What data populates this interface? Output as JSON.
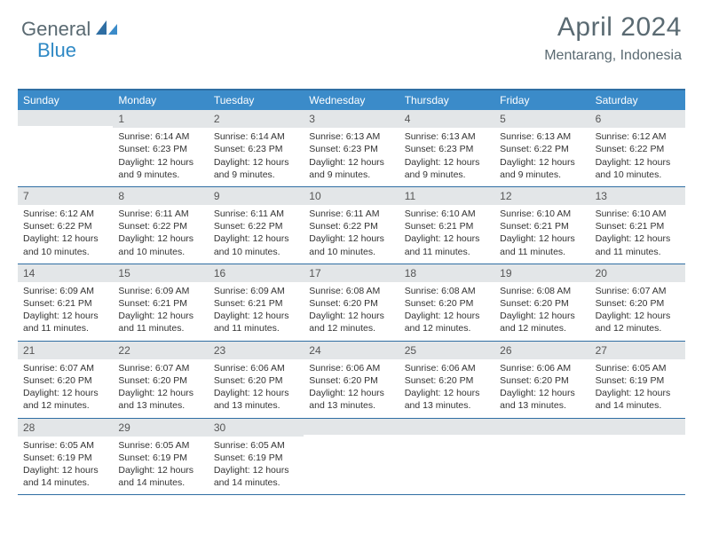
{
  "brand": {
    "part1": "General",
    "part2": "Blue"
  },
  "title": "April 2024",
  "location": "Mentarang, Indonesia",
  "colors": {
    "header_bg": "#3b8bc9",
    "border": "#2f6ea3",
    "daynum_bg": "#e3e6e8",
    "text": "#333333",
    "brand_gray": "#5a6a72",
    "brand_blue": "#2f89c5"
  },
  "dow": [
    "Sunday",
    "Monday",
    "Tuesday",
    "Wednesday",
    "Thursday",
    "Friday",
    "Saturday"
  ],
  "weeks": [
    [
      {
        "n": "",
        "sr": "",
        "ss": "",
        "dl": ""
      },
      {
        "n": "1",
        "sr": "6:14 AM",
        "ss": "6:23 PM",
        "dl": "12 hours and 9 minutes."
      },
      {
        "n": "2",
        "sr": "6:14 AM",
        "ss": "6:23 PM",
        "dl": "12 hours and 9 minutes."
      },
      {
        "n": "3",
        "sr": "6:13 AM",
        "ss": "6:23 PM",
        "dl": "12 hours and 9 minutes."
      },
      {
        "n": "4",
        "sr": "6:13 AM",
        "ss": "6:23 PM",
        "dl": "12 hours and 9 minutes."
      },
      {
        "n": "5",
        "sr": "6:13 AM",
        "ss": "6:22 PM",
        "dl": "12 hours and 9 minutes."
      },
      {
        "n": "6",
        "sr": "6:12 AM",
        "ss": "6:22 PM",
        "dl": "12 hours and 10 minutes."
      }
    ],
    [
      {
        "n": "7",
        "sr": "6:12 AM",
        "ss": "6:22 PM",
        "dl": "12 hours and 10 minutes."
      },
      {
        "n": "8",
        "sr": "6:11 AM",
        "ss": "6:22 PM",
        "dl": "12 hours and 10 minutes."
      },
      {
        "n": "9",
        "sr": "6:11 AM",
        "ss": "6:22 PM",
        "dl": "12 hours and 10 minutes."
      },
      {
        "n": "10",
        "sr": "6:11 AM",
        "ss": "6:22 PM",
        "dl": "12 hours and 10 minutes."
      },
      {
        "n": "11",
        "sr": "6:10 AM",
        "ss": "6:21 PM",
        "dl": "12 hours and 11 minutes."
      },
      {
        "n": "12",
        "sr": "6:10 AM",
        "ss": "6:21 PM",
        "dl": "12 hours and 11 minutes."
      },
      {
        "n": "13",
        "sr": "6:10 AM",
        "ss": "6:21 PM",
        "dl": "12 hours and 11 minutes."
      }
    ],
    [
      {
        "n": "14",
        "sr": "6:09 AM",
        "ss": "6:21 PM",
        "dl": "12 hours and 11 minutes."
      },
      {
        "n": "15",
        "sr": "6:09 AM",
        "ss": "6:21 PM",
        "dl": "12 hours and 11 minutes."
      },
      {
        "n": "16",
        "sr": "6:09 AM",
        "ss": "6:21 PM",
        "dl": "12 hours and 11 minutes."
      },
      {
        "n": "17",
        "sr": "6:08 AM",
        "ss": "6:20 PM",
        "dl": "12 hours and 12 minutes."
      },
      {
        "n": "18",
        "sr": "6:08 AM",
        "ss": "6:20 PM",
        "dl": "12 hours and 12 minutes."
      },
      {
        "n": "19",
        "sr": "6:08 AM",
        "ss": "6:20 PM",
        "dl": "12 hours and 12 minutes."
      },
      {
        "n": "20",
        "sr": "6:07 AM",
        "ss": "6:20 PM",
        "dl": "12 hours and 12 minutes."
      }
    ],
    [
      {
        "n": "21",
        "sr": "6:07 AM",
        "ss": "6:20 PM",
        "dl": "12 hours and 12 minutes."
      },
      {
        "n": "22",
        "sr": "6:07 AM",
        "ss": "6:20 PM",
        "dl": "12 hours and 13 minutes."
      },
      {
        "n": "23",
        "sr": "6:06 AM",
        "ss": "6:20 PM",
        "dl": "12 hours and 13 minutes."
      },
      {
        "n": "24",
        "sr": "6:06 AM",
        "ss": "6:20 PM",
        "dl": "12 hours and 13 minutes."
      },
      {
        "n": "25",
        "sr": "6:06 AM",
        "ss": "6:20 PM",
        "dl": "12 hours and 13 minutes."
      },
      {
        "n": "26",
        "sr": "6:06 AM",
        "ss": "6:20 PM",
        "dl": "12 hours and 13 minutes."
      },
      {
        "n": "27",
        "sr": "6:05 AM",
        "ss": "6:19 PM",
        "dl": "12 hours and 14 minutes."
      }
    ],
    [
      {
        "n": "28",
        "sr": "6:05 AM",
        "ss": "6:19 PM",
        "dl": "12 hours and 14 minutes."
      },
      {
        "n": "29",
        "sr": "6:05 AM",
        "ss": "6:19 PM",
        "dl": "12 hours and 14 minutes."
      },
      {
        "n": "30",
        "sr": "6:05 AM",
        "ss": "6:19 PM",
        "dl": "12 hours and 14 minutes."
      },
      {
        "n": "",
        "sr": "",
        "ss": "",
        "dl": ""
      },
      {
        "n": "",
        "sr": "",
        "ss": "",
        "dl": ""
      },
      {
        "n": "",
        "sr": "",
        "ss": "",
        "dl": ""
      },
      {
        "n": "",
        "sr": "",
        "ss": "",
        "dl": ""
      }
    ]
  ],
  "labels": {
    "sunrise": "Sunrise:",
    "sunset": "Sunset:",
    "daylight": "Daylight:"
  }
}
